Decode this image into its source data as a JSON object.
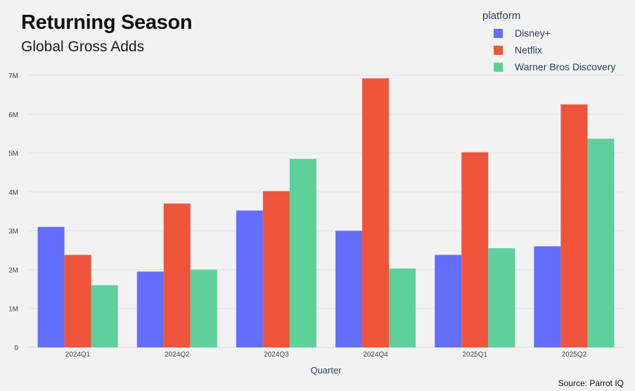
{
  "chart_data": {
    "type": "bar",
    "title": "Returning Season",
    "subtitle": "Global Gross Adds",
    "xlabel": "Quarter",
    "ylabel": "",
    "categories": [
      "2024Q1",
      "2024Q2",
      "2024Q3",
      "2024Q4",
      "2025Q1",
      "2025Q2"
    ],
    "series": [
      {
        "name": "Disney+",
        "color": "#636efa",
        "values": [
          3.1,
          1.95,
          3.52,
          3.0,
          2.38,
          2.6
        ]
      },
      {
        "name": "Netflix",
        "color": "#ef553b",
        "values": [
          2.38,
          3.7,
          4.02,
          6.92,
          5.02,
          6.25
        ]
      },
      {
        "name": "Warner Bros Discovery",
        "color": "#5ed19a",
        "values": [
          1.6,
          2.0,
          4.85,
          2.03,
          2.55,
          5.37
        ]
      }
    ],
    "ylim": [
      0,
      7.2
    ],
    "yticks": [
      0,
      1,
      2,
      3,
      4,
      5,
      6,
      7
    ],
    "ytick_labels": [
      "0",
      "1M",
      "2M",
      "3M",
      "4M",
      "5M",
      "6M",
      "7M"
    ],
    "legend_title": "platform",
    "legend_position": "top-right",
    "grid": true
  },
  "source": "Source: Parrot IQ"
}
